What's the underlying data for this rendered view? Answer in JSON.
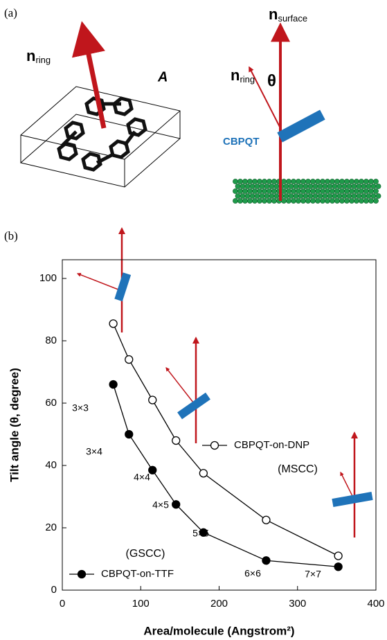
{
  "panel_a": {
    "label": "(a)",
    "n_ring_left": {
      "main": "n",
      "sub": "ring"
    },
    "box_label": "A",
    "n_surface": {
      "main": "n",
      "sub": "surface"
    },
    "n_ring_right": {
      "main": "n",
      "sub": "ring"
    },
    "theta": "θ",
    "molecule": "CBPQT"
  },
  "chart_data": {
    "type": "line",
    "panel_label": "(b)",
    "x_label": "Area/molecule (Angstrom²)",
    "y_label": "Tilt angle (θ, degree)",
    "xlim": [
      0,
      400
    ],
    "xticks": [
      0,
      100,
      200,
      300,
      400
    ],
    "ylim": [
      0,
      106
    ],
    "yticks": [
      0,
      20,
      40,
      60,
      80,
      100
    ],
    "series": [
      {
        "name": "CBPQT-on-DNP",
        "marker": "open",
        "color": "#000000",
        "x": [
          65,
          85,
          115,
          145,
          180,
          260,
          352
        ],
        "values": [
          85.5,
          74,
          61,
          48,
          37.5,
          22.5,
          11
        ]
      },
      {
        "name": "CBPQT-on-TTF",
        "marker": "filled",
        "color": "#000000",
        "x": [
          65,
          85,
          115,
          145,
          180,
          260,
          352
        ],
        "values": [
          66,
          50,
          38.5,
          27.5,
          18.5,
          9.5,
          7.5
        ],
        "point_labels": [
          "3×3",
          "3×4",
          "4×4",
          "4×5",
          "5×5",
          "6×6",
          "7×7"
        ]
      }
    ],
    "annotations": [
      "(MSCC)",
      "(GSCC)"
    ]
  }
}
